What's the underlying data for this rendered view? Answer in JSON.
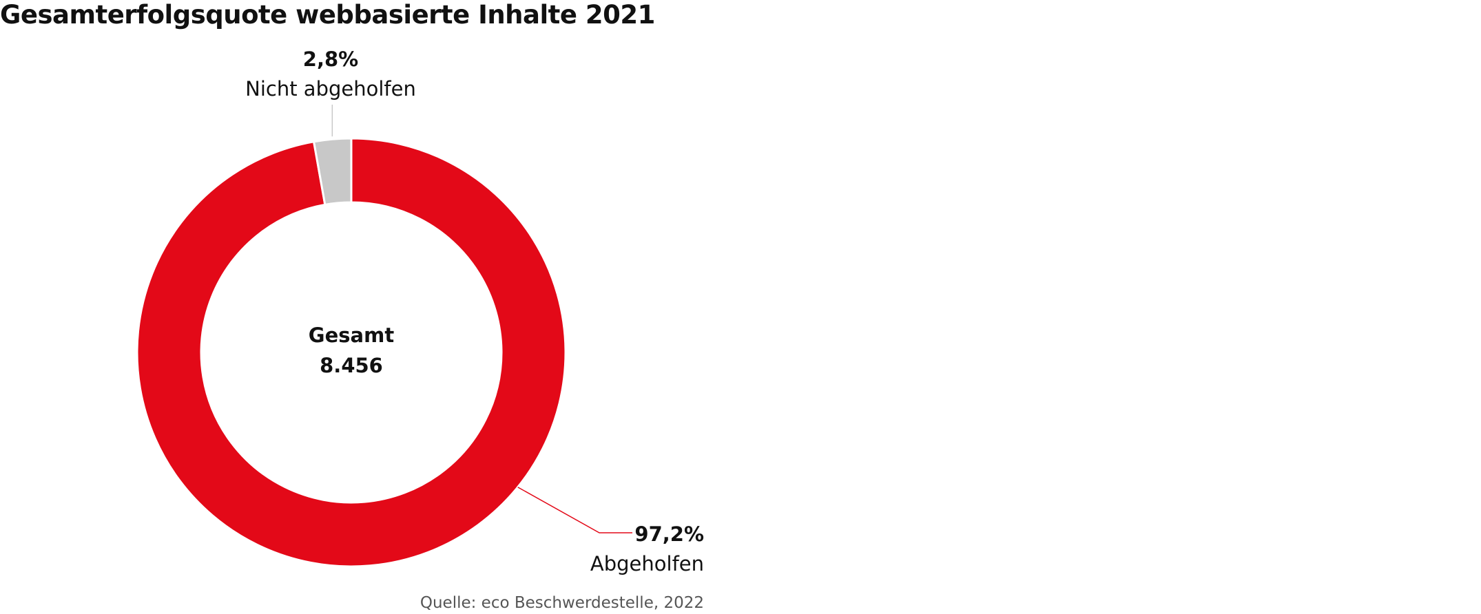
{
  "chart_data": {
    "type": "pie",
    "variant": "donut",
    "title": "Gesamterfolgsquote webbasierte Inhalte 2021",
    "center_label": "Gesamt",
    "center_value": "8.456",
    "total": 8456,
    "slices": [
      {
        "label": "Abgeholfen",
        "value": 97.2,
        "value_label": "97,2%",
        "color": "#e30918",
        "leader_color": "#e30918"
      },
      {
        "label": "Nicht abgeholfen",
        "value": 2.8,
        "value_label": "2,8%",
        "color": "#c8c8c8",
        "leader_color": "#c8c8c8"
      }
    ],
    "source": "Quelle: eco Beschwerdestelle, 2022"
  }
}
